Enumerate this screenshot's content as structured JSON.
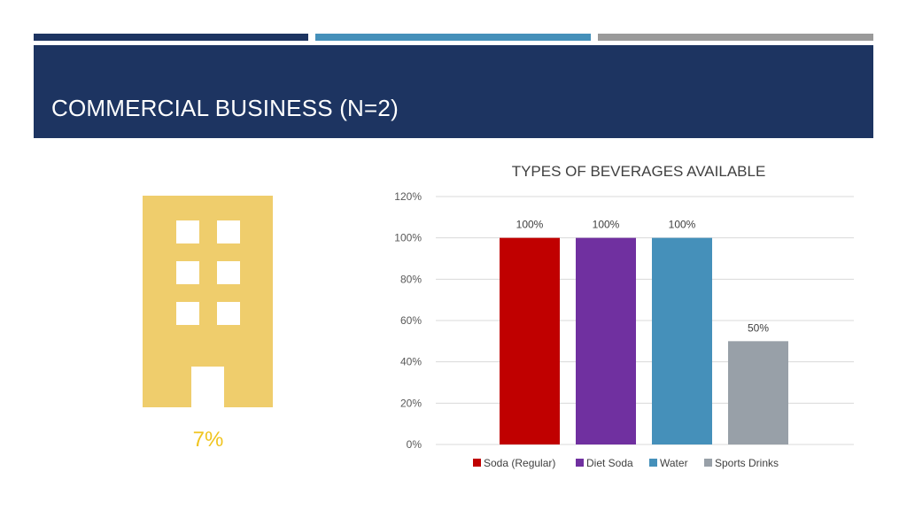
{
  "colors": {
    "navy": "#1d3461",
    "accent_blue": "#4590ba",
    "accent_gray": "#9a9a9a",
    "building": "#efcd6c",
    "percent_text": "#f0c41e"
  },
  "header": {
    "title": "COMMERCIAL BUSINESS (N=2)"
  },
  "stat": {
    "icon": "building-icon",
    "value": "7%"
  },
  "chart_data": {
    "type": "bar",
    "title": "TYPES OF BEVERAGES AVAILABLE",
    "categories": [
      "Soda (Regular)",
      "Diet Soda",
      "Water",
      "Sports Drinks"
    ],
    "values": [
      100,
      100,
      100,
      50
    ],
    "value_labels": [
      "100%",
      "100%",
      "100%",
      "50%"
    ],
    "colors": [
      "#c00000",
      "#7030a0",
      "#4590ba",
      "#98a0a8"
    ],
    "ylim": [
      0,
      120
    ],
    "yticks": [
      0,
      20,
      40,
      60,
      80,
      100,
      120
    ],
    "ytick_labels": [
      "0%",
      "20%",
      "40%",
      "60%",
      "80%",
      "100%",
      "120%"
    ],
    "xlabel": "",
    "ylabel": "",
    "grid": true,
    "legend": "bottom"
  }
}
